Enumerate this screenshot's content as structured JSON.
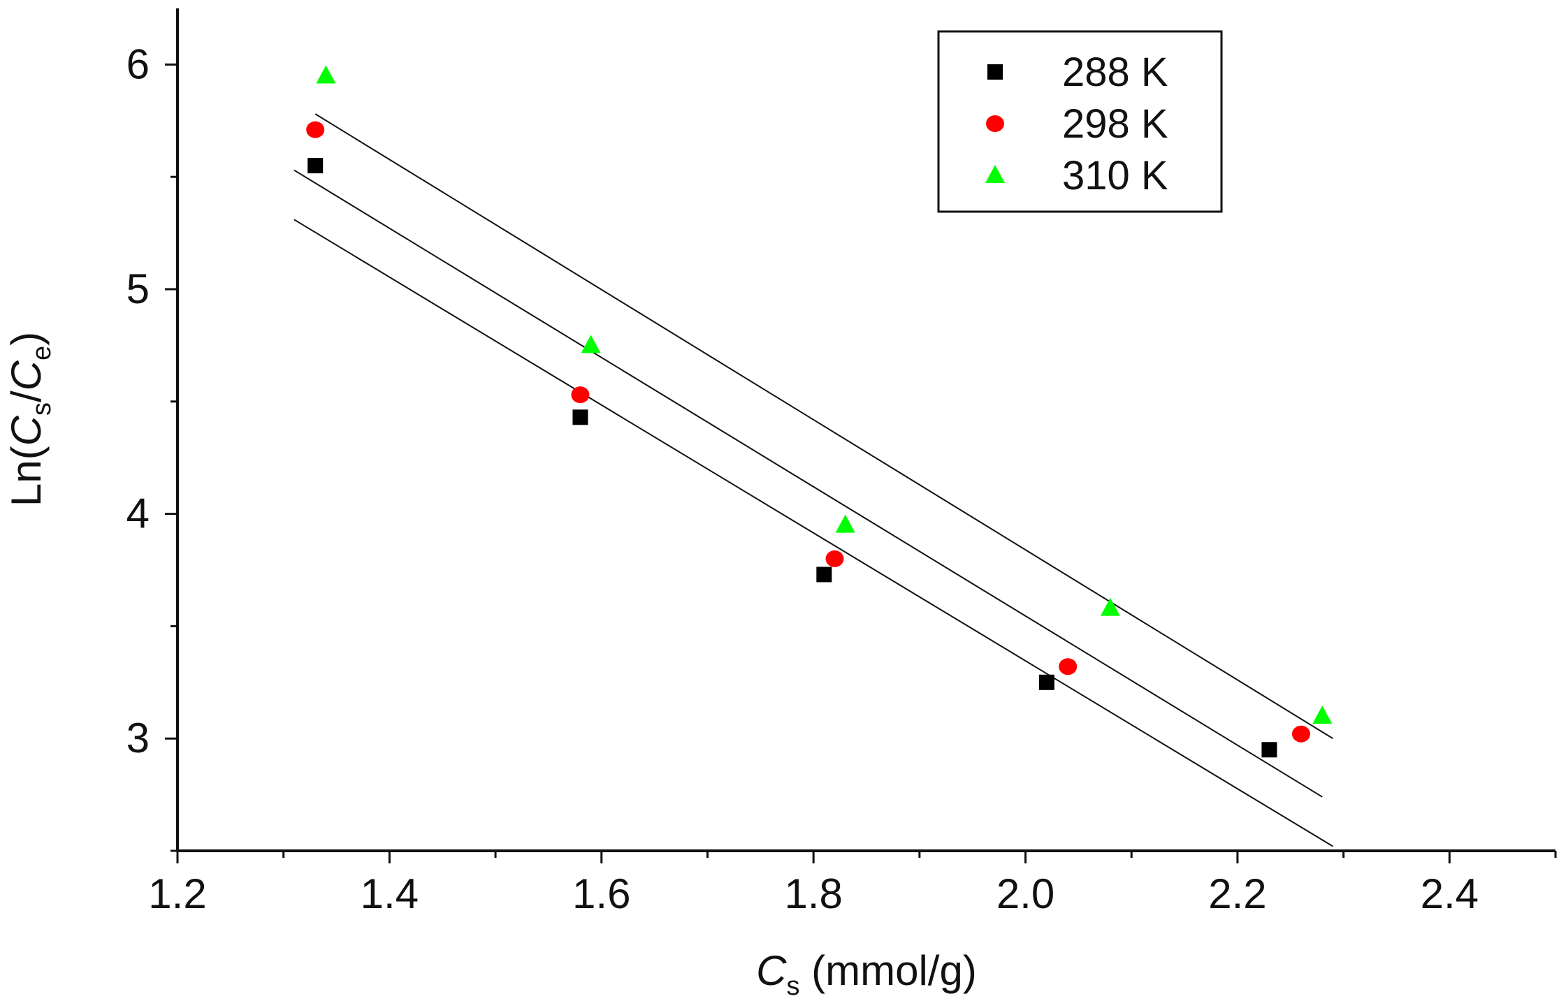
{
  "chart_data": {
    "type": "scatter",
    "title": "",
    "xlabel": {
      "main": "C",
      "sub": "s",
      "rest": " (mmol/g)"
    },
    "ylabel": {
      "prefix": "Ln(",
      "c1": "C",
      "s1": "s",
      "slash": "/",
      "c2": "C",
      "s2": "e",
      "suffix": ")"
    },
    "xlim": [
      1.2,
      2.5
    ],
    "ylim": [
      2.5,
      6.25
    ],
    "xticks": [
      1.2,
      1.4,
      1.6,
      1.8,
      2.0,
      2.2,
      2.4
    ],
    "xtick_labels": [
      "1.2",
      "1.4",
      "1.6",
      "1.8",
      "2.0",
      "2.2",
      "2.4"
    ],
    "yticks": [
      3,
      4,
      5,
      6
    ],
    "ytick_labels": [
      "3",
      "4",
      "5",
      "6"
    ],
    "legend_position": "top-right",
    "series": [
      {
        "name": "288 K",
        "marker": "square",
        "color": "#000000",
        "x": [
          1.33,
          1.58,
          1.81,
          2.02,
          2.23
        ],
        "y": [
          5.55,
          4.43,
          3.73,
          3.25,
          2.95
        ],
        "fit": {
          "x": [
            1.31,
            2.29
          ],
          "y": [
            5.31,
            2.52
          ]
        }
      },
      {
        "name": "298 K",
        "marker": "circle",
        "color": "#ff0000",
        "x": [
          1.33,
          1.58,
          1.82,
          2.04,
          2.26
        ],
        "y": [
          5.71,
          4.53,
          3.8,
          3.32,
          3.02
        ],
        "fit": {
          "x": [
            1.31,
            2.28
          ],
          "y": [
            5.53,
            2.74
          ]
        }
      },
      {
        "name": "310 K",
        "marker": "triangle",
        "color": "#00ff00",
        "x": [
          1.34,
          1.59,
          1.83,
          2.08,
          2.28
        ],
        "y": [
          5.95,
          4.75,
          3.95,
          3.58,
          3.1
        ],
        "fit": {
          "x": [
            1.33,
            2.29
          ],
          "y": [
            5.78,
            3.0
          ]
        }
      }
    ]
  }
}
